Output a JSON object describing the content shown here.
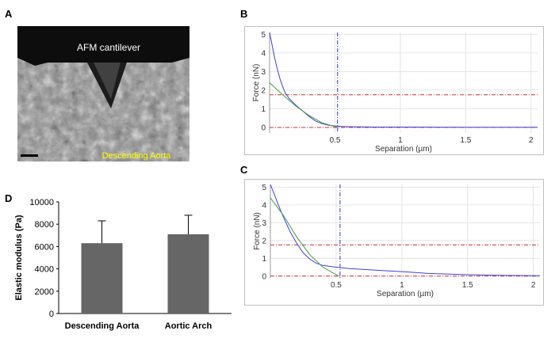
{
  "panels": {
    "a": {
      "label": "A",
      "cantilever_label": "AFM cantilever",
      "tissue_label": "Descending Aorta",
      "tissue_label_color": "#ffff00"
    },
    "b": {
      "label": "B"
    },
    "c": {
      "label": "C"
    },
    "d": {
      "label": "D"
    }
  },
  "chart_data": [
    {
      "id": "b",
      "type": "line",
      "xlabel": "Separation (µm)",
      "ylabel": "Force (nN)",
      "xlim": [
        0,
        2.05
      ],
      "ylim": [
        -0.3,
        5.1
      ],
      "xticks": [
        0.5,
        1,
        1.5,
        2
      ],
      "xtick_labels": [
        "0.5",
        "1",
        "1.5",
        "2"
      ],
      "yticks": [
        0,
        1,
        2,
        3,
        4,
        5
      ],
      "ytick_labels": [
        "0",
        "1",
        "2",
        "3",
        "4",
        "5"
      ],
      "grid": true,
      "series": [
        {
          "color": "#4040e0",
          "x": [
            0.0,
            0.02,
            0.04,
            0.06,
            0.08,
            0.1,
            0.12,
            0.15,
            0.2,
            0.25,
            0.3,
            0.35,
            0.4,
            0.45,
            0.5,
            0.55,
            0.6,
            0.8,
            1.0,
            1.5,
            2.05
          ],
          "y": [
            5.1,
            4.4,
            3.7,
            3.1,
            2.6,
            2.2,
            1.85,
            1.55,
            1.2,
            0.9,
            0.6,
            0.35,
            0.2,
            0.12,
            0.08,
            0.05,
            0.04,
            0.02,
            0.02,
            0.01,
            0.01
          ]
        },
        {
          "color": "#40a040",
          "x": [
            0.0,
            0.1,
            0.2,
            0.3,
            0.4,
            0.52
          ],
          "y": [
            2.4,
            1.75,
            1.15,
            0.65,
            0.25,
            0.0
          ]
        }
      ],
      "hlines": [
        {
          "y": 1.75,
          "color": "#cc3333"
        },
        {
          "y": 0.0,
          "color": "#cc3333"
        }
      ],
      "vlines": [
        {
          "x": 0.52,
          "color": "#3333cc"
        }
      ]
    },
    {
      "id": "c",
      "type": "line",
      "xlabel": "Separation (µm)",
      "ylabel": "Force (nN)",
      "xlim": [
        0,
        2.05
      ],
      "ylim": [
        -0.1,
        5.15
      ],
      "xticks": [
        0.5,
        1,
        1.5,
        2
      ],
      "xtick_labels": [
        "0.5",
        "1",
        "1.5",
        "2"
      ],
      "yticks": [
        0,
        1,
        2,
        3,
        4,
        5
      ],
      "ytick_labels": [
        "0",
        "1",
        "2",
        "3",
        "4",
        "5"
      ],
      "grid": true,
      "series": [
        {
          "color": "#4040e0",
          "x": [
            0.0,
            0.03,
            0.06,
            0.1,
            0.15,
            0.2,
            0.25,
            0.3,
            0.35,
            0.4,
            0.5,
            0.6,
            0.8,
            1.0,
            1.2,
            1.5,
            1.8,
            2.05
          ],
          "y": [
            5.15,
            4.6,
            4.0,
            3.3,
            2.5,
            1.85,
            1.3,
            0.95,
            0.72,
            0.6,
            0.5,
            0.42,
            0.33,
            0.25,
            0.15,
            0.08,
            0.04,
            0.02
          ]
        },
        {
          "color": "#40a040",
          "x": [
            0.0,
            0.1,
            0.2,
            0.3,
            0.4,
            0.52
          ],
          "y": [
            4.4,
            3.4,
            2.2,
            1.2,
            0.5,
            0.0
          ]
        }
      ],
      "hlines": [
        {
          "y": 1.75,
          "color": "#cc3333"
        },
        {
          "y": 0.0,
          "color": "#cc3333"
        }
      ],
      "vlines": [
        {
          "x": 0.53,
          "color": "#3333cc"
        }
      ]
    },
    {
      "id": "d",
      "type": "bar",
      "categories": [
        "Descending Aorta",
        "Aortic Arch"
      ],
      "values": [
        6300,
        7100
      ],
      "errors": [
        2000,
        1700
      ],
      "ylabel": "Elastic modulus (Pa)",
      "ylim": [
        0,
        10000
      ],
      "yticks": [
        0,
        2000,
        4000,
        6000,
        8000,
        10000
      ],
      "ytick_labels": [
        "0",
        "2000",
        "4000",
        "6000",
        "8000",
        "10000"
      ],
      "bar_color": "#666666"
    }
  ]
}
